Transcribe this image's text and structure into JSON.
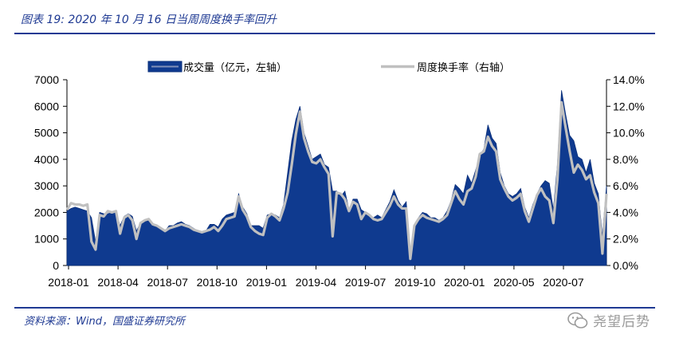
{
  "header": {
    "title": "图表 19:  2020 年 10 月 16 日当周周度换手率回升"
  },
  "footer": {
    "source": "资料来源：Wind，国盛证券研究所"
  },
  "watermark": {
    "text": "尧望后势",
    "icon": "wechat-icon"
  },
  "chart_data": {
    "type": "area",
    "title": "",
    "legend_position": "top",
    "grid": false,
    "x_tick_labels": [
      "2018-01",
      "2018-04",
      "2018-07",
      "2018-10",
      "2019-01",
      "2019-04",
      "2019-07",
      "2019-10",
      "2020-01",
      "2020-05",
      "2020-07"
    ],
    "y_left_ticks": [
      "0",
      "1000",
      "2000",
      "3000",
      "4000",
      "5000",
      "6000",
      "7000"
    ],
    "y_right_ticks": [
      "0.0%",
      "2.0%",
      "4.0%",
      "6.0%",
      "8.0%",
      "10.0%",
      "12.0%",
      "14.0%"
    ],
    "ylim_left": [
      0,
      7000
    ],
    "ylim_right": [
      0,
      14
    ],
    "series": [
      {
        "name": "成交量（亿元，左轴）",
        "axis": "left",
        "type": "area",
        "color": "#0f3a8f",
        "values": [
          2050,
          2150,
          2200,
          2150,
          2100,
          2050,
          1800,
          900,
          2000,
          1950,
          1950,
          2000,
          2000,
          1500,
          1850,
          1950,
          1850,
          1300,
          1600,
          1650,
          1700,
          1500,
          1500,
          1400,
          1300,
          1500,
          1500,
          1600,
          1650,
          1550,
          1500,
          1400,
          1300,
          1250,
          1300,
          1550,
          1550,
          1450,
          1750,
          1900,
          1950,
          2000,
          2700,
          2200,
          1950,
          1500,
          1500,
          1500,
          1400,
          1900,
          1950,
          1900,
          1800,
          2300,
          3500,
          4700,
          5500,
          6000,
          5000,
          4500,
          4000,
          4100,
          4200,
          3800,
          3700,
          2800,
          2800,
          2600,
          2800,
          2100,
          2500,
          2500,
          2100,
          2000,
          1900,
          1800,
          1900,
          1800,
          2100,
          2400,
          2850,
          2450,
          2200,
          2400,
          450,
          1500,
          1800,
          2000,
          1950,
          1800,
          1800,
          1700,
          1800,
          2050,
          2450,
          3050,
          2900,
          2700,
          3400,
          3100,
          3600,
          4100,
          4400,
          5300,
          4800,
          4600,
          3500,
          3000,
          2700,
          2600,
          2700,
          2900,
          2200,
          1800,
          2300,
          2700,
          3000,
          3200,
          3100,
          2100,
          3800,
          6600,
          5700,
          4900,
          4700,
          4100,
          4000,
          3500,
          4000,
          3100,
          2700,
          1100,
          3000
        ]
      },
      {
        "name": "周度换手率（右轴）",
        "axis": "right",
        "type": "line",
        "color": "#c0c0c0",
        "values": [
          4.2,
          4.7,
          4.6,
          4.6,
          4.5,
          4.6,
          1.8,
          1.2,
          3.8,
          3.7,
          4.1,
          4.0,
          4.1,
          2.4,
          3.6,
          3.8,
          3.4,
          2.0,
          3.2,
          3.4,
          3.5,
          3.1,
          3.0,
          2.8,
          2.6,
          2.8,
          2.9,
          3.0,
          3.1,
          3.0,
          2.9,
          2.7,
          2.6,
          2.5,
          2.6,
          2.7,
          2.9,
          2.6,
          3.0,
          3.5,
          3.6,
          3.7,
          5.2,
          4.2,
          3.7,
          2.9,
          2.6,
          2.4,
          2.3,
          3.6,
          3.9,
          3.7,
          3.4,
          4.3,
          5.5,
          7.6,
          9.9,
          11.6,
          9.6,
          8.6,
          7.8,
          7.7,
          8.0,
          7.4,
          6.9,
          2.2,
          5.5,
          5.4,
          5.0,
          4.1,
          4.8,
          4.6,
          3.5,
          4.0,
          3.8,
          3.5,
          3.4,
          3.5,
          4.0,
          4.5,
          5.2,
          4.6,
          4.3,
          4.3,
          0.5,
          3.0,
          3.5,
          3.8,
          3.6,
          3.5,
          3.4,
          3.3,
          3.5,
          3.8,
          4.7,
          5.6,
          5.0,
          4.6,
          5.6,
          5.8,
          6.7,
          8.4,
          8.6,
          9.7,
          9.0,
          8.6,
          6.5,
          5.8,
          5.2,
          4.9,
          5.1,
          5.4,
          4.1,
          3.3,
          4.3,
          5.3,
          5.8,
          5.2,
          4.9,
          3.2,
          6.5,
          12.3,
          10.4,
          8.6,
          7.0,
          7.6,
          7.2,
          6.5,
          6.8,
          5.5,
          4.7,
          0.9,
          5.4
        ]
      }
    ]
  }
}
